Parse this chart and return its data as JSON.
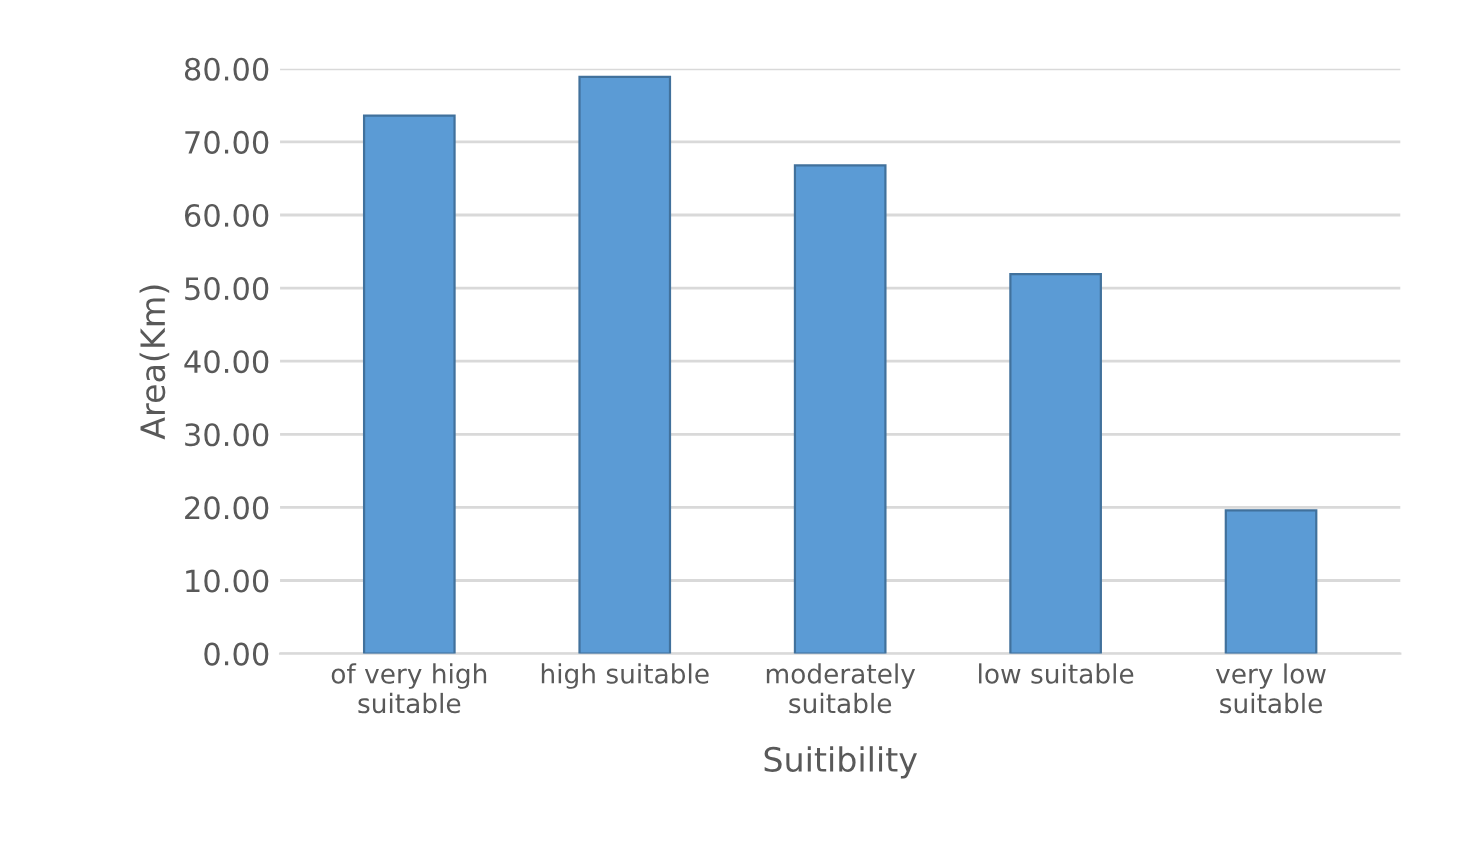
{
  "chart_data": {
    "type": "bar",
    "xlabel": "Suitibility",
    "ylabel": "Area(Km)",
    "categories": [
      "of very high\nsuitable",
      "high suitable",
      "moderately\nsuitable",
      "low suitable",
      "very low\nsuitable"
    ],
    "values": [
      73.6,
      78.9,
      66.8,
      51.9,
      19.6
    ],
    "color": "#5b9bd5",
    "ylim": [
      0,
      80
    ],
    "yticks": [
      {
        "value": 0,
        "label": "0.00"
      },
      {
        "value": 10,
        "label": "10.00"
      },
      {
        "value": 20,
        "label": "20.00"
      },
      {
        "value": 30,
        "label": "30.00"
      },
      {
        "value": 40,
        "label": "40.00"
      },
      {
        "value": 50,
        "label": "50.00"
      },
      {
        "value": 60,
        "label": "60.00"
      },
      {
        "value": 70,
        "label": "70.00"
      },
      {
        "value": 80,
        "label": "80.00"
      }
    ],
    "grid": "y"
  }
}
